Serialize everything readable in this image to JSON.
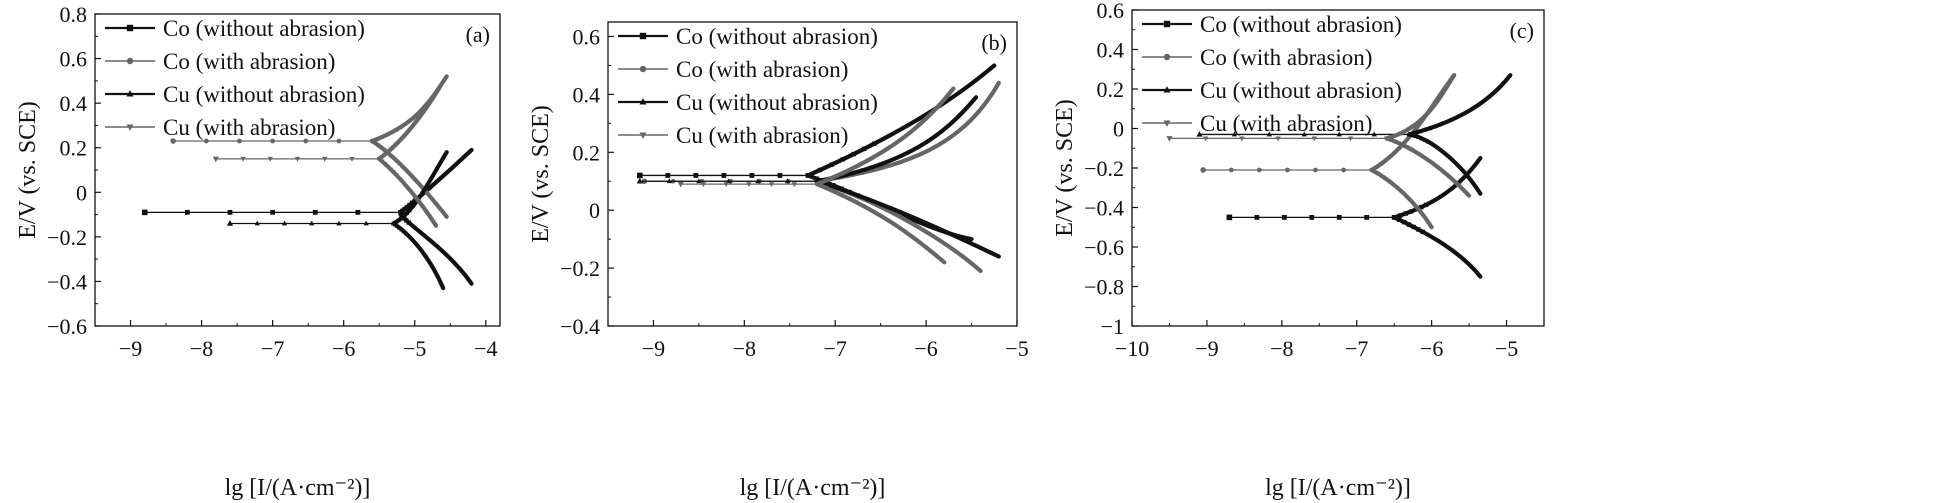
{
  "chart_data": [
    {
      "type": "line",
      "panel_label": "(a)",
      "xlabel": "lg [I/(A·cm⁻²)]",
      "ylabel": "E/V (vs. SCE)",
      "xlim": [
        -9.5,
        -3.8
      ],
      "ylim": [
        -0.6,
        0.8
      ],
      "xticks": [
        -9,
        -8,
        -7,
        -6,
        -5,
        -4
      ],
      "yticks": [
        -0.6,
        -0.4,
        -0.2,
        0,
        0.2,
        0.4,
        0.6,
        0.8
      ],
      "legend_position": "top-left",
      "series": [
        {
          "name": "Co (without abrasion)",
          "color": "#111111",
          "marker": "square",
          "ecorr": -0.09,
          "start": -8.8,
          "corner": -5.2,
          "anodic": [
            [
              -5.0,
              -0.04
            ],
            [
              -4.6,
              0.07
            ],
            [
              -4.2,
              0.19
            ]
          ],
          "cathodic": [
            [
              -5.2,
              -0.13
            ],
            [
              -4.6,
              -0.23
            ],
            [
              -4.2,
              -0.41
            ]
          ]
        },
        {
          "name": "Co (with abrasion)",
          "color": "#666666",
          "marker": "circle",
          "ecorr": 0.23,
          "start": -8.4,
          "corner": -5.6,
          "anodic": [
            [
              -5.0,
              0.3
            ],
            [
              -4.8,
              0.4
            ],
            [
              -4.55,
              0.52
            ]
          ],
          "cathodic": [
            [
              -5.3,
              0.17
            ],
            [
              -4.9,
              0.03
            ],
            [
              -4.55,
              -0.11
            ]
          ]
        },
        {
          "name": "Cu (without abrasion)",
          "color": "#111111",
          "marker": "triangle-up",
          "ecorr": -0.14,
          "start": -7.6,
          "corner": -5.3,
          "anodic": [
            [
              -5.0,
              -0.09
            ],
            [
              -4.8,
              0.05
            ],
            [
              -4.55,
              0.18
            ]
          ],
          "cathodic": [
            [
              -5.1,
              -0.18
            ],
            [
              -4.8,
              -0.28
            ],
            [
              -4.6,
              -0.43
            ]
          ]
        },
        {
          "name": "Cu (with abrasion)",
          "color": "#666666",
          "marker": "triangle-down",
          "ecorr": 0.15,
          "start": -7.8,
          "corner": -5.5,
          "anodic": [
            [
              -5.2,
              0.22
            ],
            [
              -4.9,
              0.34
            ],
            [
              -4.65,
              0.47
            ]
          ],
          "cathodic": [
            [
              -5.2,
              0.07
            ],
            [
              -4.9,
              -0.05
            ],
            [
              -4.7,
              -0.15
            ]
          ]
        }
      ]
    },
    {
      "type": "line",
      "panel_label": "(b)",
      "xlabel": "lg [I/(A·cm⁻²)]",
      "ylabel": "E/V (vs. SCE)",
      "xlim": [
        -9.5,
        -5.0
      ],
      "ylim": [
        -0.4,
        0.65
      ],
      "xticks": [
        -9,
        -8,
        -7,
        -6,
        -5
      ],
      "yticks": [
        -0.4,
        -0.2,
        0,
        0.2,
        0.4,
        0.6
      ],
      "legend_position": "top-left",
      "series": [
        {
          "name": "Co (without abrasion)",
          "color": "#111111",
          "marker": "square",
          "ecorr": 0.12,
          "start": -9.15,
          "corner": -7.3,
          "anodic": [
            [
              -6.3,
              0.26
            ],
            [
              -5.7,
              0.38
            ],
            [
              -5.25,
              0.5
            ]
          ],
          "cathodic": [
            [
              -6.6,
              0.04
            ],
            [
              -6.0,
              -0.07
            ],
            [
              -5.5,
              -0.1
            ]
          ]
        },
        {
          "name": "Co (with abrasion)",
          "color": "#666666",
          "marker": "circle",
          "ecorr": 0.1,
          "start": -9.1,
          "corner": -7.2,
          "anodic": [
            [
              -6.2,
              0.15
            ],
            [
              -5.6,
              0.22
            ],
            [
              -5.2,
              0.44
            ]
          ],
          "cathodic": [
            [
              -6.5,
              0.03
            ],
            [
              -5.8,
              -0.1
            ],
            [
              -5.4,
              -0.21
            ]
          ]
        },
        {
          "name": "Cu (without abrasion)",
          "color": "#111111",
          "marker": "triangle-up",
          "ecorr": 0.1,
          "start": -9.15,
          "corner": -7.2,
          "anodic": [
            [
              -6.2,
              0.16
            ],
            [
              -5.8,
              0.26
            ],
            [
              -5.45,
              0.39
            ]
          ],
          "cathodic": [
            [
              -6.5,
              0.03
            ],
            [
              -5.8,
              -0.07
            ],
            [
              -5.2,
              -0.16
            ]
          ]
        },
        {
          "name": "Cu (with abrasion)",
          "color": "#666666",
          "marker": "triangle-down",
          "ecorr": 0.09,
          "start": -8.7,
          "corner": -7.2,
          "anodic": [
            [
              -6.4,
              0.19
            ],
            [
              -6.0,
              0.3
            ],
            [
              -5.7,
              0.42
            ]
          ],
          "cathodic": [
            [
              -6.5,
              0.0
            ],
            [
              -6.1,
              -0.1
            ],
            [
              -5.8,
              -0.18
            ]
          ]
        }
      ]
    },
    {
      "type": "line",
      "panel_label": "(c)",
      "xlabel": "lg [I/(A·cm⁻²)]",
      "ylabel": "E/V (vs. SCE)",
      "xlim": [
        -10,
        -4.5
      ],
      "ylim": [
        -1.0,
        0.6
      ],
      "xticks": [
        -10,
        -9,
        -8,
        -7,
        -6,
        -5
      ],
      "yticks": [
        -1.0,
        -0.8,
        -0.6,
        -0.4,
        -0.2,
        0,
        0.2,
        0.4,
        0.6
      ],
      "legend_position": "top-left",
      "series": [
        {
          "name": "Co (without abrasion)",
          "color": "#111111",
          "marker": "square",
          "ecorr": -0.45,
          "start": -8.7,
          "corner": -6.5,
          "anodic": [
            [
              -5.9,
              -0.38
            ],
            [
              -5.6,
              -0.28
            ],
            [
              -5.35,
              -0.15
            ]
          ],
          "cathodic": [
            [
              -6.0,
              -0.54
            ],
            [
              -5.6,
              -0.63
            ],
            [
              -5.35,
              -0.75
            ]
          ]
        },
        {
          "name": "Co (with abrasion)",
          "color": "#666666",
          "marker": "circle",
          "ecorr": -0.21,
          "start": -9.05,
          "corner": -6.8,
          "anodic": [
            [
              -6.3,
              -0.1
            ],
            [
              -6.0,
              0.12
            ],
            [
              -5.7,
              0.27
            ]
          ],
          "cathodic": [
            [
              -6.5,
              -0.27
            ],
            [
              -6.2,
              -0.38
            ],
            [
              -6.0,
              -0.5
            ]
          ]
        },
        {
          "name": "Cu (without abrasion)",
          "color": "#111111",
          "marker": "triangle-up",
          "ecorr": -0.03,
          "start": -9.1,
          "corner": -6.3,
          "anodic": [
            [
              -5.8,
              0.02
            ],
            [
              -5.3,
              0.1
            ],
            [
              -4.95,
              0.27
            ]
          ],
          "cathodic": [
            [
              -6.0,
              -0.05
            ],
            [
              -5.6,
              -0.18
            ],
            [
              -5.35,
              -0.33
            ]
          ]
        },
        {
          "name": "Cu (with abrasion)",
          "color": "#666666",
          "marker": "triangle-down",
          "ecorr": -0.05,
          "start": -9.5,
          "corner": -6.6,
          "anodic": [
            [
              -6.1,
              0.0
            ],
            [
              -5.9,
              0.15
            ],
            [
              -5.7,
              0.27
            ]
          ],
          "cathodic": [
            [
              -6.2,
              -0.1
            ],
            [
              -5.8,
              -0.22
            ],
            [
              -5.5,
              -0.34
            ]
          ]
        }
      ]
    }
  ]
}
